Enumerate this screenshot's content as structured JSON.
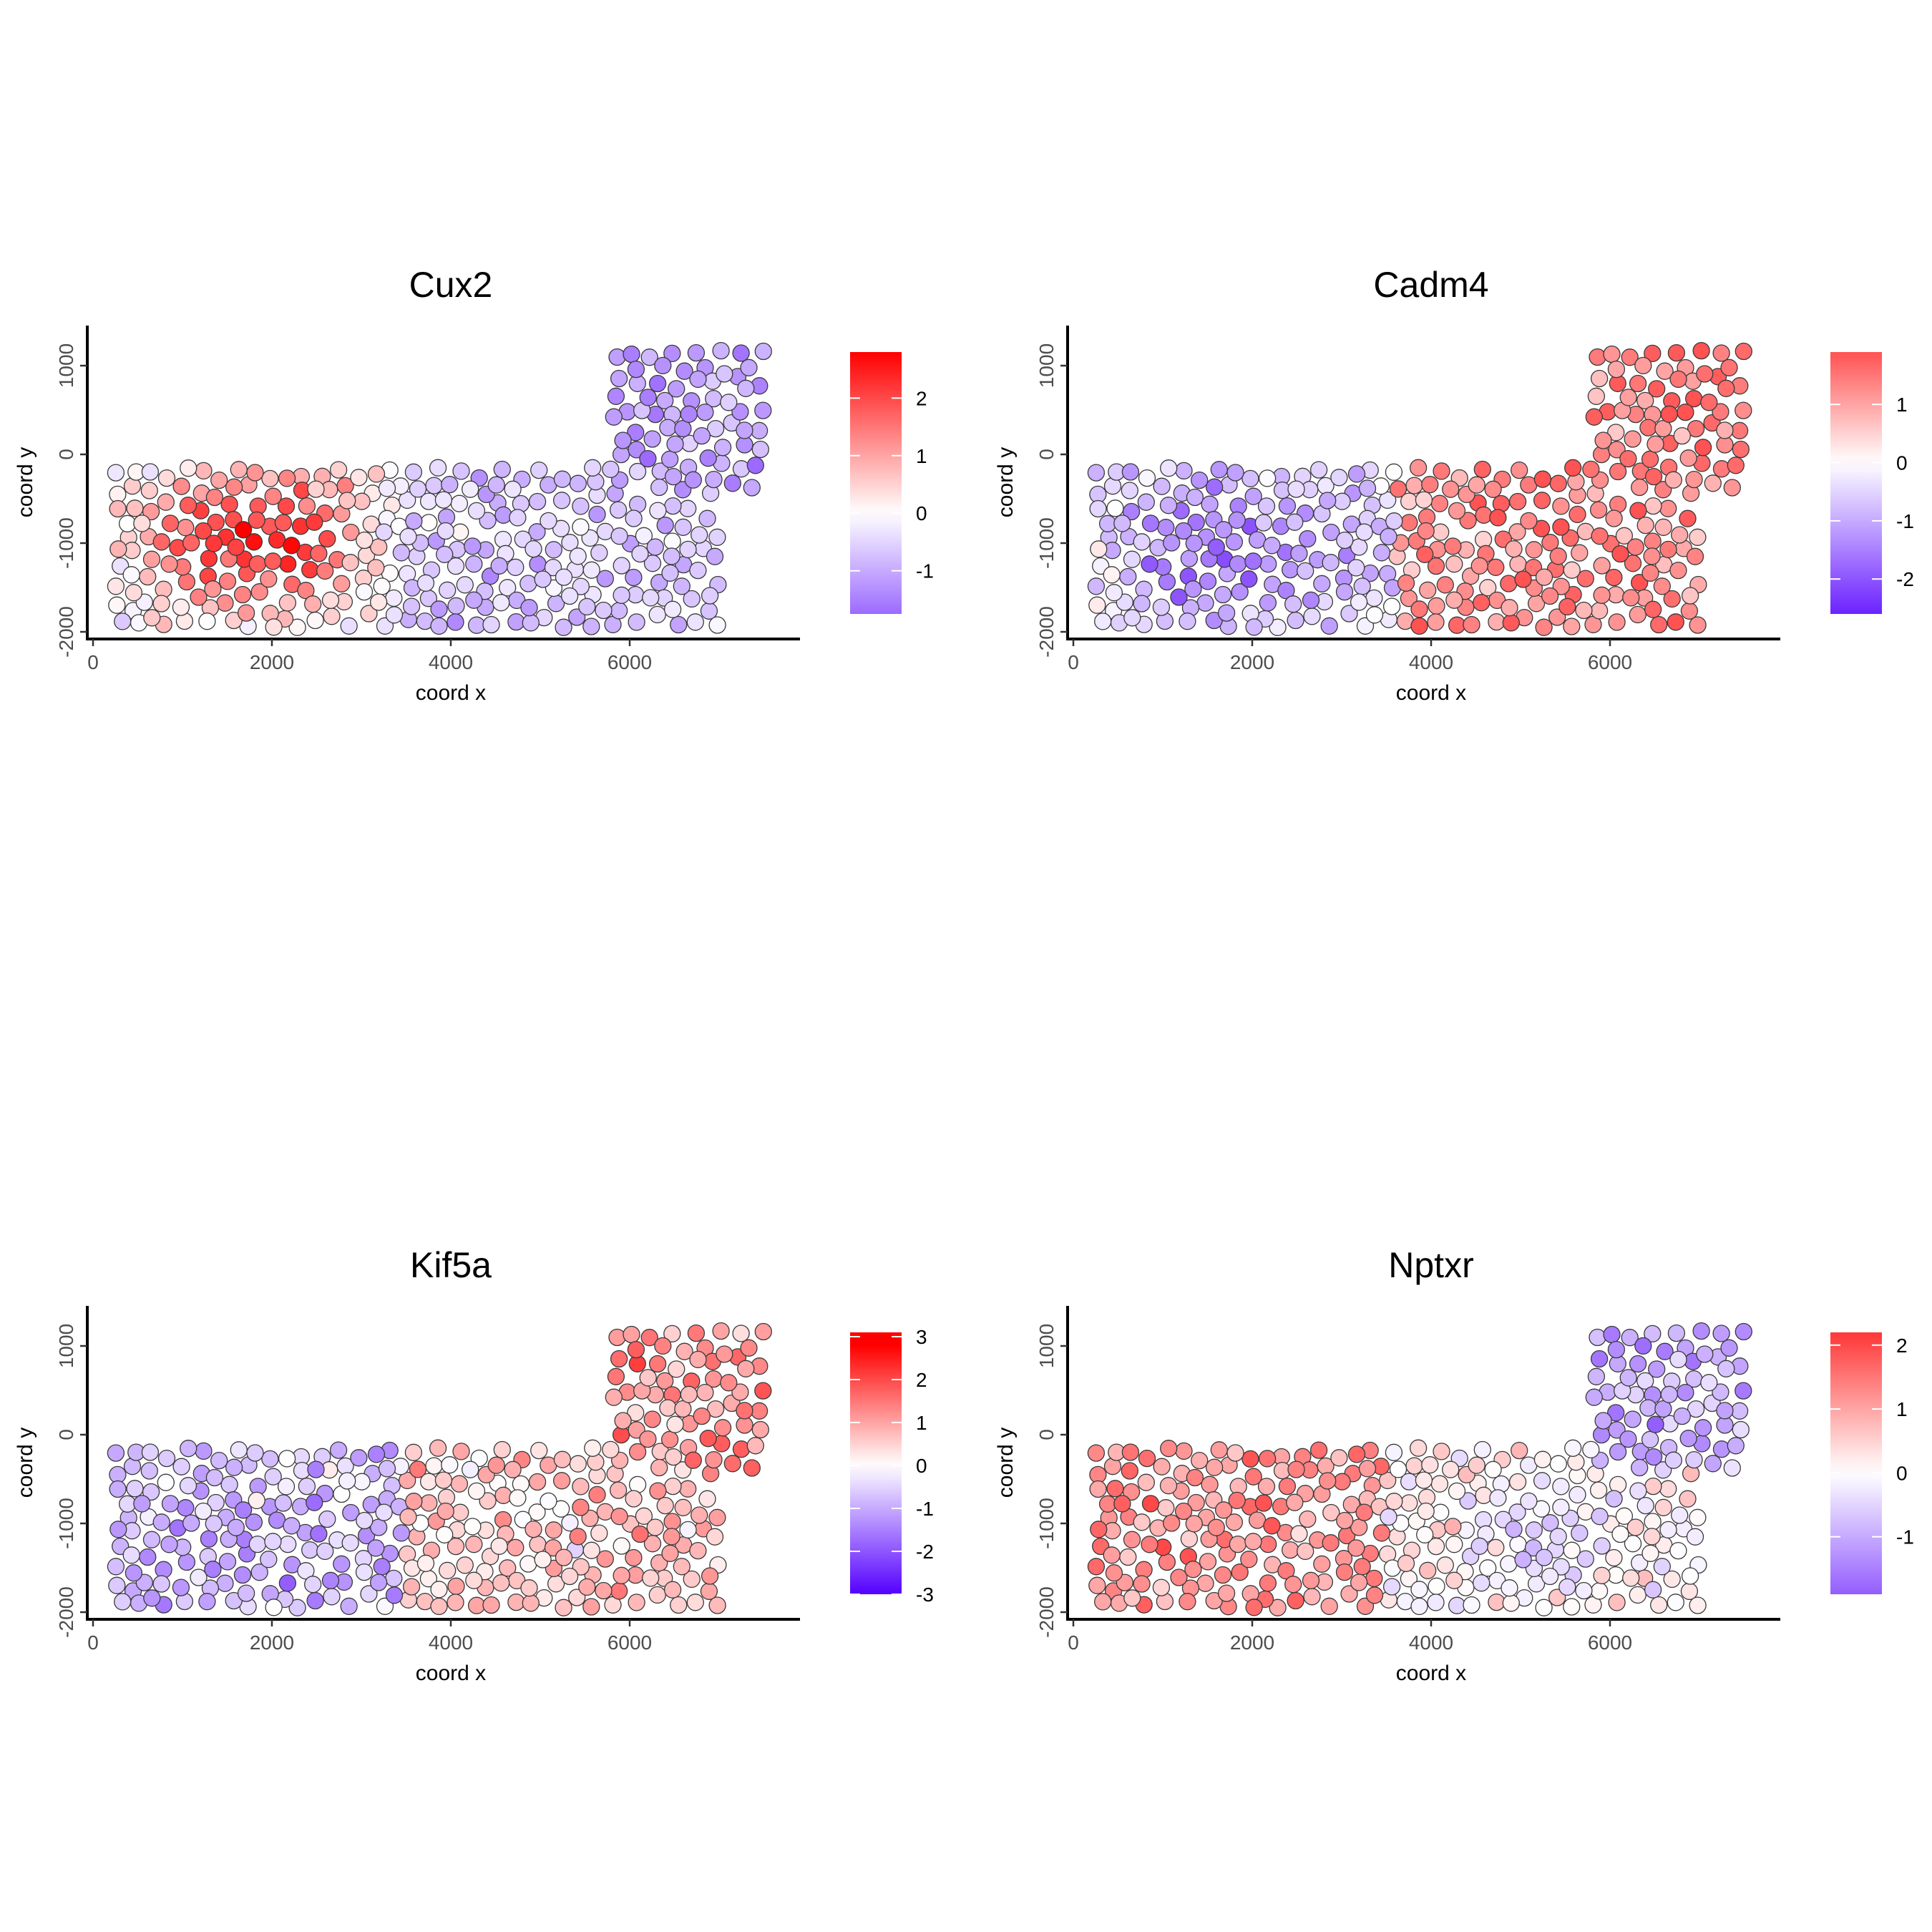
{
  "chart_data": [
    {
      "type": "scatter",
      "title": "Cux2",
      "xlabel": "coord x",
      "ylabel": "coord y",
      "xlim": [
        -200,
        7900
      ],
      "ylim": [
        -2100,
        1400
      ],
      "xticks": [
        0,
        2000,
        4000,
        6000
      ],
      "yticks": [
        -2000,
        -1000,
        0,
        1000
      ],
      "grid": false,
      "legend_position": "right",
      "color_scale": {
        "low": "#5500ff",
        "mid": "#ffffff",
        "high": "#ff0000",
        "min": -1.75,
        "max": 2.8,
        "ticks": [
          -1,
          0,
          1,
          2
        ]
      },
      "profile": "cux2",
      "note_values": "color value per spot estimated from fill"
    },
    {
      "type": "scatter",
      "title": "Cadm4",
      "xlabel": "coord x",
      "ylabel": "coord y",
      "xlim": [
        -200,
        7900
      ],
      "ylim": [
        -2100,
        1400
      ],
      "xticks": [
        0,
        2000,
        4000,
        6000
      ],
      "yticks": [
        -2000,
        -1000,
        0,
        1000
      ],
      "grid": false,
      "legend_position": "right",
      "color_scale": {
        "low": "#5500ff",
        "mid": "#ffffff",
        "high": "#ff0000",
        "min": -2.6,
        "max": 1.9,
        "ticks": [
          -2,
          -1,
          0,
          1
        ]
      },
      "profile": "cadm4"
    },
    {
      "type": "scatter",
      "title": "Kif5a",
      "xlabel": "coord x",
      "ylabel": "coord y",
      "xlim": [
        -200,
        7900
      ],
      "ylim": [
        -2100,
        1400
      ],
      "xticks": [
        0,
        2000,
        4000,
        6000
      ],
      "yticks": [
        -2000,
        -1000,
        0,
        1000
      ],
      "grid": false,
      "legend_position": "right",
      "color_scale": {
        "low": "#5500ff",
        "mid": "#ffffff",
        "high": "#ff0000",
        "min": -3.0,
        "max": 3.1,
        "ticks": [
          -3,
          -2,
          -1,
          0,
          1,
          2,
          3
        ]
      },
      "profile": "kif5a"
    },
    {
      "type": "scatter",
      "title": "Nptxr",
      "xlabel": "coord x",
      "ylabel": "coord y",
      "xlim": [
        -200,
        7900
      ],
      "ylim": [
        -2100,
        1400
      ],
      "xticks": [
        0,
        2000,
        4000,
        6000
      ],
      "yticks": [
        -2000,
        -1000,
        0,
        1000
      ],
      "grid": false,
      "legend_position": "right",
      "color_scale": {
        "low": "#5500ff",
        "mid": "#ffffff",
        "high": "#ff0000",
        "min": -1.9,
        "max": 2.2,
        "ticks": [
          -1,
          0,
          1,
          2
        ]
      },
      "profile": "nptxr"
    }
  ]
}
